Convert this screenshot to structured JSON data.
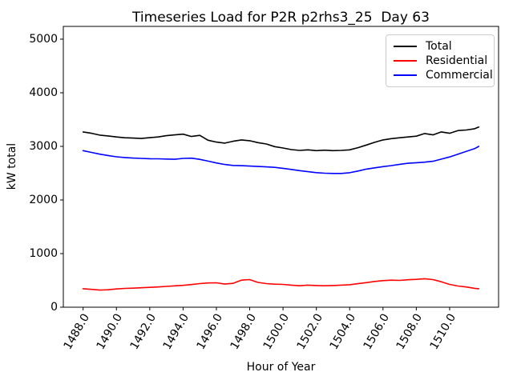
{
  "chart_data": {
    "type": "line",
    "title": "Timeseries Load for P2R p2rhs3_25  Day 63",
    "xlabel": "Hour of Year",
    "ylabel": "kW total",
    "xlim": [
      1486.8125,
      1512.9375
    ],
    "ylim": [
      0,
      5238
    ],
    "grid": false,
    "legend_position": "upper right",
    "x_ticks": [
      1488,
      1490,
      1492,
      1494,
      1496,
      1498,
      1500,
      1502,
      1504,
      1506,
      1508,
      1510
    ],
    "x_tick_labels": [
      "1488.0",
      "1490.0",
      "1492.0",
      "1494.0",
      "1496.0",
      "1498.0",
      "1500.0",
      "1502.0",
      "1504.0",
      "1506.0",
      "1508.0",
      "1510.0"
    ],
    "y_ticks": [
      0,
      1000,
      2000,
      3000,
      4000,
      5000
    ],
    "y_tick_labels": [
      "0",
      "1000",
      "2000",
      "3000",
      "4000",
      "5000"
    ],
    "x": [
      1488.0,
      1488.5,
      1489.0,
      1489.5,
      1490.0,
      1490.5,
      1491.0,
      1491.5,
      1492.0,
      1492.5,
      1493.0,
      1493.5,
      1494.0,
      1494.5,
      1495.0,
      1495.5,
      1496.0,
      1496.5,
      1497.0,
      1497.5,
      1498.0,
      1498.5,
      1499.0,
      1499.5,
      1500.0,
      1500.5,
      1501.0,
      1501.5,
      1502.0,
      1502.5,
      1503.0,
      1503.5,
      1504.0,
      1504.5,
      1505.0,
      1505.5,
      1506.0,
      1506.5,
      1507.0,
      1507.5,
      1508.0,
      1508.5,
      1509.0,
      1509.5,
      1510.0,
      1510.5,
      1511.0,
      1511.5,
      1511.75
    ],
    "series": [
      {
        "name": "Total",
        "color": "#000000",
        "values": [
          3270,
          3245,
          3210,
          3195,
          3175,
          3160,
          3155,
          3148,
          3162,
          3175,
          3200,
          3215,
          3228,
          3185,
          3205,
          3115,
          3080,
          3060,
          3095,
          3120,
          3105,
          3070,
          3045,
          2995,
          2970,
          2940,
          2925,
          2935,
          2920,
          2930,
          2920,
          2925,
          2935,
          2975,
          3025,
          3075,
          3120,
          3145,
          3160,
          3175,
          3190,
          3240,
          3215,
          3270,
          3245,
          3295,
          3305,
          3330,
          3360
        ]
      },
      {
        "name": "Residential",
        "color": "#ff0000",
        "values": [
          345,
          333,
          320,
          325,
          340,
          350,
          355,
          362,
          370,
          378,
          388,
          398,
          408,
          422,
          440,
          452,
          455,
          432,
          445,
          505,
          515,
          462,
          440,
          430,
          425,
          412,
          400,
          412,
          405,
          400,
          405,
          412,
          420,
          438,
          458,
          480,
          495,
          505,
          500,
          512,
          520,
          532,
          515,
          475,
          425,
          395,
          378,
          352,
          345
        ]
      },
      {
        "name": "Commercial",
        "color": "#0000ff",
        "values": [
          2920,
          2888,
          2855,
          2830,
          2805,
          2792,
          2782,
          2775,
          2770,
          2768,
          2764,
          2760,
          2775,
          2780,
          2758,
          2725,
          2690,
          2662,
          2645,
          2640,
          2632,
          2625,
          2618,
          2608,
          2590,
          2570,
          2548,
          2528,
          2510,
          2500,
          2495,
          2495,
          2508,
          2540,
          2575,
          2600,
          2622,
          2642,
          2665,
          2685,
          2695,
          2705,
          2722,
          2762,
          2802,
          2855,
          2905,
          2958,
          3000
        ]
      }
    ]
  }
}
